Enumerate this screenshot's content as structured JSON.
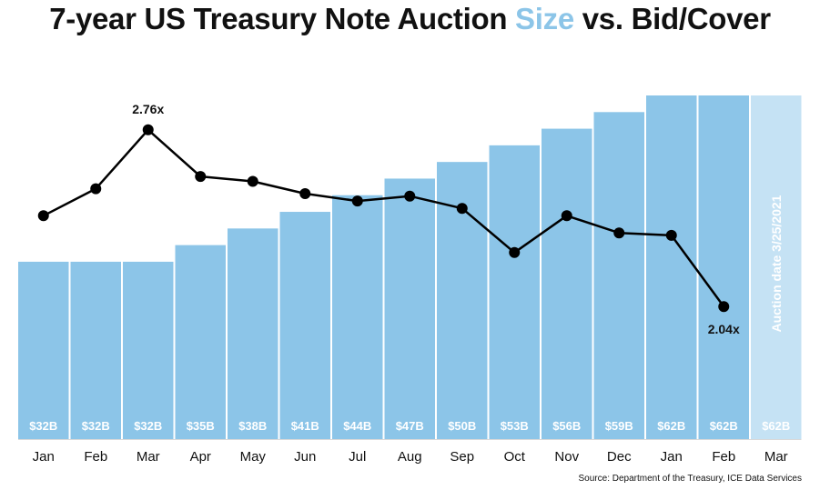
{
  "title": {
    "part1": "7-year US Treasury Note Auction ",
    "highlight": "Size",
    "part2": " vs. Bid/Cover"
  },
  "source": "Source:  Department of the Treasury, ICE Data Services",
  "chart_data": {
    "type": "bar+line",
    "title": "7-year US Treasury Note Auction Size vs. Bid/Cover",
    "categories": [
      "Jan",
      "Feb",
      "Mar",
      "Apr",
      "May",
      "Jun",
      "Jul",
      "Aug",
      "Sep",
      "Oct",
      "Nov",
      "Dec",
      "Jan",
      "Feb",
      "Mar"
    ],
    "bars": {
      "name": "Auction Size ($B)",
      "values": [
        32,
        32,
        32,
        35,
        38,
        41,
        44,
        47,
        50,
        53,
        56,
        59,
        62,
        62,
        62
      ],
      "labels": [
        "$32B",
        "$32B",
        "$32B",
        "$35B",
        "$38B",
        "$41B",
        "$44B",
        "$47B",
        "$50B",
        "$53B",
        "$56B",
        "$59B",
        "$62B",
        "$62B",
        "$62B"
      ],
      "color": "#8cc5e8",
      "upcoming_color": "#c5e2f4",
      "ylim": [
        0,
        62
      ]
    },
    "line": {
      "name": "Bid/Cover",
      "values": [
        2.41,
        2.52,
        2.76,
        2.57,
        2.55,
        2.5,
        2.47,
        2.49,
        2.44,
        2.26,
        2.41,
        2.34,
        2.33,
        2.04,
        null
      ],
      "ylim": [
        1.5,
        2.9
      ],
      "color": "#000000",
      "annotations": [
        {
          "index": 2,
          "text": "2.76x"
        },
        {
          "index": 13,
          "text": "2.04x"
        }
      ]
    },
    "upcoming_note": "Auction date 3/25/2021",
    "upcoming_index": 14
  }
}
